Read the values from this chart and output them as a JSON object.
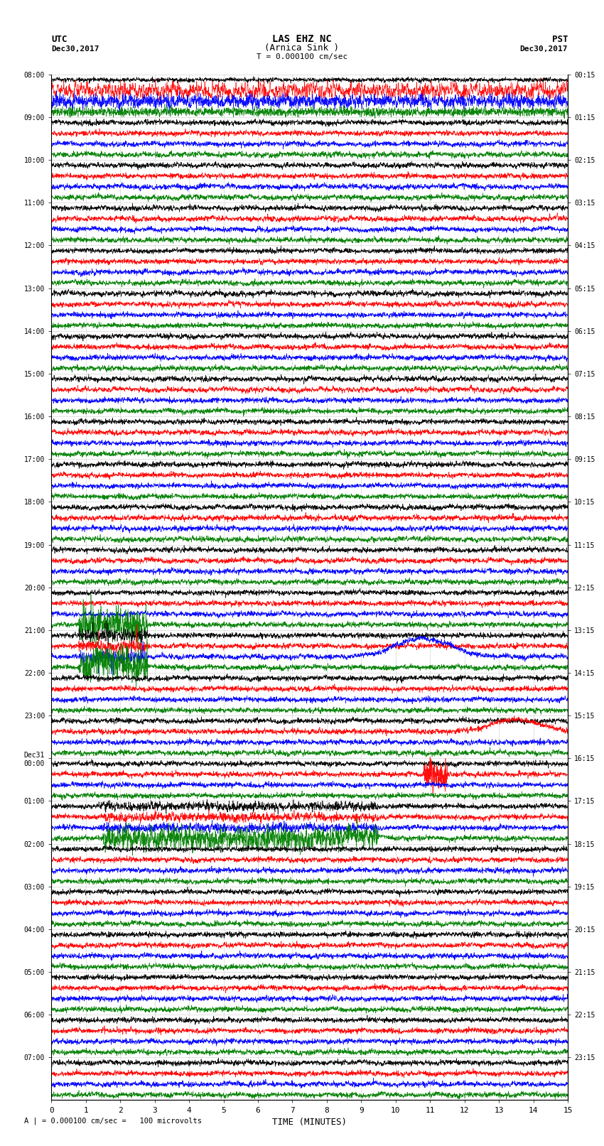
{
  "title_line1": "LAS EHZ NC",
  "title_line2": "(Arnica Sink )",
  "scale_label": "T = 0.000100 cm/sec",
  "footer_label": "A | = 0.000100 cm/sec =   100 microvolts",
  "utc_label": "UTC",
  "pst_label": "PST",
  "date_left": "Dec30,2017",
  "date_right": "Dec30,2017",
  "xlabel": "TIME (MINUTES)",
  "xlim": [
    0,
    15
  ],
  "xticks": [
    0,
    1,
    2,
    3,
    4,
    5,
    6,
    7,
    8,
    9,
    10,
    11,
    12,
    13,
    14,
    15
  ],
  "num_rows": 96,
  "colors_cycle": [
    "#000000",
    "#ff0000",
    "#0000ff",
    "#008000"
  ],
  "bg_color": "#ffffff",
  "left_labels_utc": [
    "08:00",
    "09:00",
    "10:00",
    "11:00",
    "12:00",
    "13:00",
    "14:00",
    "15:00",
    "16:00",
    "17:00",
    "18:00",
    "19:00",
    "20:00",
    "21:00",
    "22:00",
    "23:00",
    "Dec31\n00:00",
    "01:00",
    "02:00",
    "03:00",
    "04:00",
    "05:00",
    "06:00",
    "07:00"
  ],
  "right_labels_pst": [
    "00:15",
    "01:15",
    "02:15",
    "03:15",
    "04:15",
    "05:15",
    "06:15",
    "07:15",
    "08:15",
    "09:15",
    "10:15",
    "11:15",
    "12:15",
    "13:15",
    "14:15",
    "15:15",
    "16:15",
    "17:15",
    "18:15",
    "19:15",
    "20:15",
    "21:15",
    "22:15",
    "23:15"
  ],
  "label_row_indices": [
    0,
    4,
    8,
    12,
    16,
    20,
    24,
    28,
    32,
    36,
    40,
    44,
    48,
    52,
    56,
    60,
    64,
    68,
    72,
    76,
    80,
    84,
    88,
    92
  ]
}
